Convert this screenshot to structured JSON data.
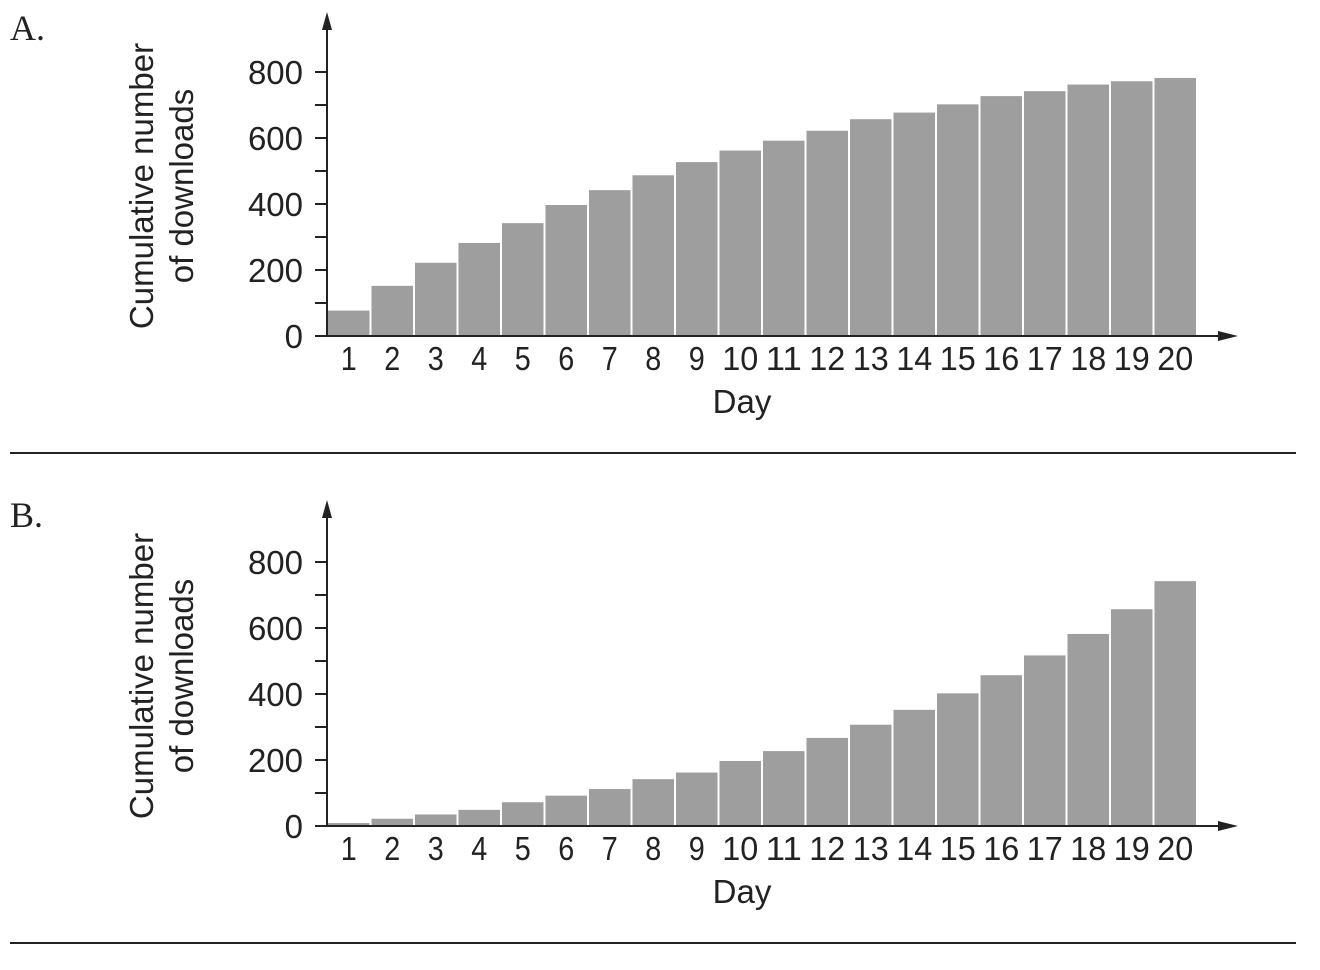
{
  "chart_data": [
    {
      "panel_label": "A.",
      "type": "bar",
      "categories": [
        "1",
        "2",
        "3",
        "4",
        "5",
        "6",
        "7",
        "8",
        "9",
        "10",
        "11",
        "12",
        "13",
        "14",
        "15",
        "16",
        "17",
        "18",
        "19",
        "20"
      ],
      "values": [
        80,
        155,
        225,
        285,
        345,
        400,
        445,
        490,
        530,
        565,
        595,
        625,
        660,
        680,
        705,
        730,
        745,
        765,
        775,
        785
      ],
      "xlabel": "Day",
      "ylabel_lines": [
        "Cumulative number",
        "of downloads"
      ],
      "y_ticks": [
        0,
        200,
        400,
        600,
        800
      ],
      "y_minor_step": 100,
      "ylim": [
        0,
        900
      ],
      "grid": false,
      "color": "#9e9e9e"
    },
    {
      "panel_label": "B.",
      "type": "bar",
      "categories": [
        "1",
        "2",
        "3",
        "4",
        "5",
        "6",
        "7",
        "8",
        "9",
        "10",
        "11",
        "12",
        "13",
        "14",
        "15",
        "16",
        "17",
        "18",
        "19",
        "20"
      ],
      "values": [
        12,
        25,
        38,
        52,
        75,
        95,
        115,
        145,
        165,
        200,
        230,
        270,
        310,
        355,
        405,
        460,
        520,
        585,
        660,
        745
      ],
      "xlabel": "Day",
      "ylabel_lines": [
        "Cumulative number",
        "of downloads"
      ],
      "y_ticks": [
        0,
        200,
        400,
        600,
        800
      ],
      "y_minor_step": 100,
      "ylim": [
        0,
        900
      ],
      "grid": false,
      "color": "#9e9e9e"
    }
  ]
}
